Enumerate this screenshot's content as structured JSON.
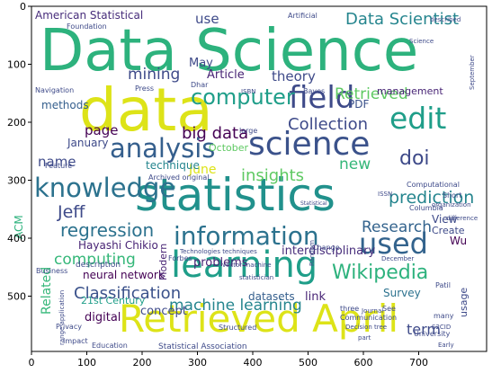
{
  "figure": {
    "x_ticks": [
      "0",
      "100",
      "200",
      "300",
      "400",
      "500",
      "600",
      "700"
    ],
    "y_ticks": [
      "0",
      "100",
      "200",
      "300",
      "400",
      "500"
    ],
    "words": [
      {
        "text": "Data Science",
        "color": "#2db27d"
      },
      {
        "text": "data",
        "color": "#dde318"
      },
      {
        "text": "statistics",
        "color": "#21918c"
      },
      {
        "text": "science",
        "color": "#3b528b"
      },
      {
        "text": "Retrieved April",
        "color": "#dde318"
      },
      {
        "text": "learning",
        "color": "#1f9e89"
      },
      {
        "text": "information",
        "color": "#2c728e"
      },
      {
        "text": "knowledge",
        "color": "#2c728e"
      },
      {
        "text": "analysis",
        "color": "#355f8d"
      },
      {
        "text": "field",
        "color": "#3e4a89"
      },
      {
        "text": "edit",
        "color": "#1f9e89"
      },
      {
        "text": "used",
        "color": "#33638d"
      },
      {
        "text": "computer",
        "color": "#1f9e89"
      },
      {
        "text": "doi",
        "color": "#3e4a89"
      },
      {
        "text": "Wikipedia",
        "color": "#2db27d"
      },
      {
        "text": "Data Scientist",
        "color": "#25858e"
      },
      {
        "text": "regression",
        "color": "#2c728e"
      },
      {
        "text": "machine learning",
        "color": "#25858e"
      },
      {
        "text": "big data",
        "color": "#440154"
      },
      {
        "text": "Collection",
        "color": "#3e4a89"
      },
      {
        "text": "Retrieved",
        "color": "#5ec962"
      },
      {
        "text": "prediction",
        "color": "#25858e"
      },
      {
        "text": "Classification",
        "color": "#3b528b"
      },
      {
        "text": "Research",
        "color": "#33638d"
      },
      {
        "text": "computing",
        "color": "#35b779"
      },
      {
        "text": "insights",
        "color": "#5ec962"
      },
      {
        "text": "mining",
        "color": "#3e4a89"
      },
      {
        "text": "Jeff",
        "color": "#3e4a89"
      },
      {
        "text": "theory",
        "color": "#3e4a89"
      },
      {
        "text": "new",
        "color": "#35b779"
      },
      {
        "text": "American Statistical",
        "color": "#472d7b"
      },
      {
        "text": "use",
        "color": "#3e4a89"
      },
      {
        "text": "term",
        "color": "#3e4a89"
      },
      {
        "text": "page",
        "color": "#440154"
      },
      {
        "text": "name",
        "color": "#3e4a89"
      },
      {
        "text": "June",
        "color": "#dde318"
      },
      {
        "text": "neural network",
        "color": "#440154"
      },
      {
        "text": "interdisciplinary",
        "color": "#472d7b"
      },
      {
        "text": "problems",
        "color": "#482475"
      },
      {
        "text": "Survey",
        "color": "#2c728e"
      },
      {
        "text": "datasets",
        "color": "#355f8d"
      },
      {
        "text": "link",
        "color": "#482475"
      },
      {
        "text": "digital",
        "color": "#440154"
      },
      {
        "text": "concept",
        "color": "#3e4a89"
      },
      {
        "text": "Article",
        "color": "#482475"
      },
      {
        "text": "methods",
        "color": "#355f8d"
      },
      {
        "text": "management",
        "color": "#482475"
      },
      {
        "text": "technique",
        "color": "#25858e"
      },
      {
        "text": "Related",
        "color": "#35b779"
      },
      {
        "text": "October",
        "color": "#5ec962"
      },
      {
        "text": "January",
        "color": "#3e4a89"
      },
      {
        "text": "Hayashi Chikio",
        "color": "#482475"
      },
      {
        "text": "View",
        "color": "#3e4a89"
      },
      {
        "text": "Create",
        "color": "#3e4a89"
      },
      {
        "text": "Wu",
        "color": "#440154"
      },
      {
        "text": "usage",
        "color": "#3e4a89"
      },
      {
        "text": "PDF",
        "color": "#3b528b"
      },
      {
        "text": "May",
        "color": "#3e4a89"
      },
      {
        "text": "ACM",
        "color": "#2db27d"
      },
      {
        "text": "Modern",
        "color": "#482475"
      },
      {
        "text": "21st Century",
        "color": "#1f9e89"
      },
      {
        "text": "Statistical Association",
        "color": "#3e4a89"
      },
      {
        "text": "Education",
        "color": "#3e4a89"
      },
      {
        "text": "Impact",
        "color": "#3e4a89"
      },
      {
        "text": "Privacy",
        "color": "#3e4a89"
      },
      {
        "text": "description",
        "color": "#3e4a89"
      },
      {
        "text": "Business",
        "color": "#3e4a89"
      },
      {
        "text": "Computational",
        "color": "#3e4a89"
      },
      {
        "text": "Columbia",
        "color": "#3e4a89"
      },
      {
        "text": "organization",
        "color": "#3e4a89"
      },
      {
        "text": "Short",
        "color": "#3e4a89"
      },
      {
        "text": "ISSN",
        "color": "#3e4a89"
      },
      {
        "text": "University",
        "color": "#3e4a89"
      },
      {
        "text": "Early",
        "color": "#3e4a89"
      },
      {
        "text": "S2CID",
        "color": "#3e4a89"
      },
      {
        "text": "many",
        "color": "#3e4a89"
      },
      {
        "text": "Communication",
        "color": "#3e4a89"
      },
      {
        "text": "Decision tree",
        "color": "#3e4a89"
      },
      {
        "text": "December",
        "color": "#3e4a89"
      },
      {
        "text": "Patil",
        "color": "#3e4a89"
      },
      {
        "text": "Journal",
        "color": "#3e4a89"
      },
      {
        "text": "three",
        "color": "#3e4a89"
      },
      {
        "text": "See",
        "color": "#3e4a89"
      },
      {
        "text": "part",
        "color": "#3e4a89"
      },
      {
        "text": "Structured",
        "color": "#3e4a89"
      },
      {
        "text": "statistician",
        "color": "#3e4a89"
      },
      {
        "text": "vector machine",
        "color": "#3e4a89"
      },
      {
        "text": "Forbes",
        "color": "#3e4a89"
      },
      {
        "text": "Technologies techniques",
        "color": "#3e4a89"
      },
      {
        "text": "Feature",
        "color": "#3e4a89"
      },
      {
        "text": "Archived original",
        "color": "#3e4a89"
      },
      {
        "text": "Dhar",
        "color": "#3e4a89"
      },
      {
        "text": "ISBN",
        "color": "#3e4a89"
      },
      {
        "text": "Bayes",
        "color": "#3e4a89"
      },
      {
        "text": "Press",
        "color": "#3e4a89"
      },
      {
        "text": "Navigation",
        "color": "#3e4a89"
      },
      {
        "text": "Foundation",
        "color": "#3e4a89"
      },
      {
        "text": "Artificial",
        "color": "#3e4a89"
      },
      {
        "text": "described",
        "color": "#3e4a89"
      },
      {
        "text": "September",
        "color": "#3e4a89"
      },
      {
        "text": "range application",
        "color": "#3e4a89"
      },
      {
        "text": "large",
        "color": "#3e4a89"
      },
      {
        "text": "Random",
        "color": "#3e4a89"
      },
      {
        "text": "Change",
        "color": "#3e4a89"
      },
      {
        "text": "difference",
        "color": "#3e4a89"
      },
      {
        "text": "Science",
        "color": "#3e4a89"
      },
      {
        "text": "Statistical",
        "color": "#3e4a89"
      }
    ]
  }
}
